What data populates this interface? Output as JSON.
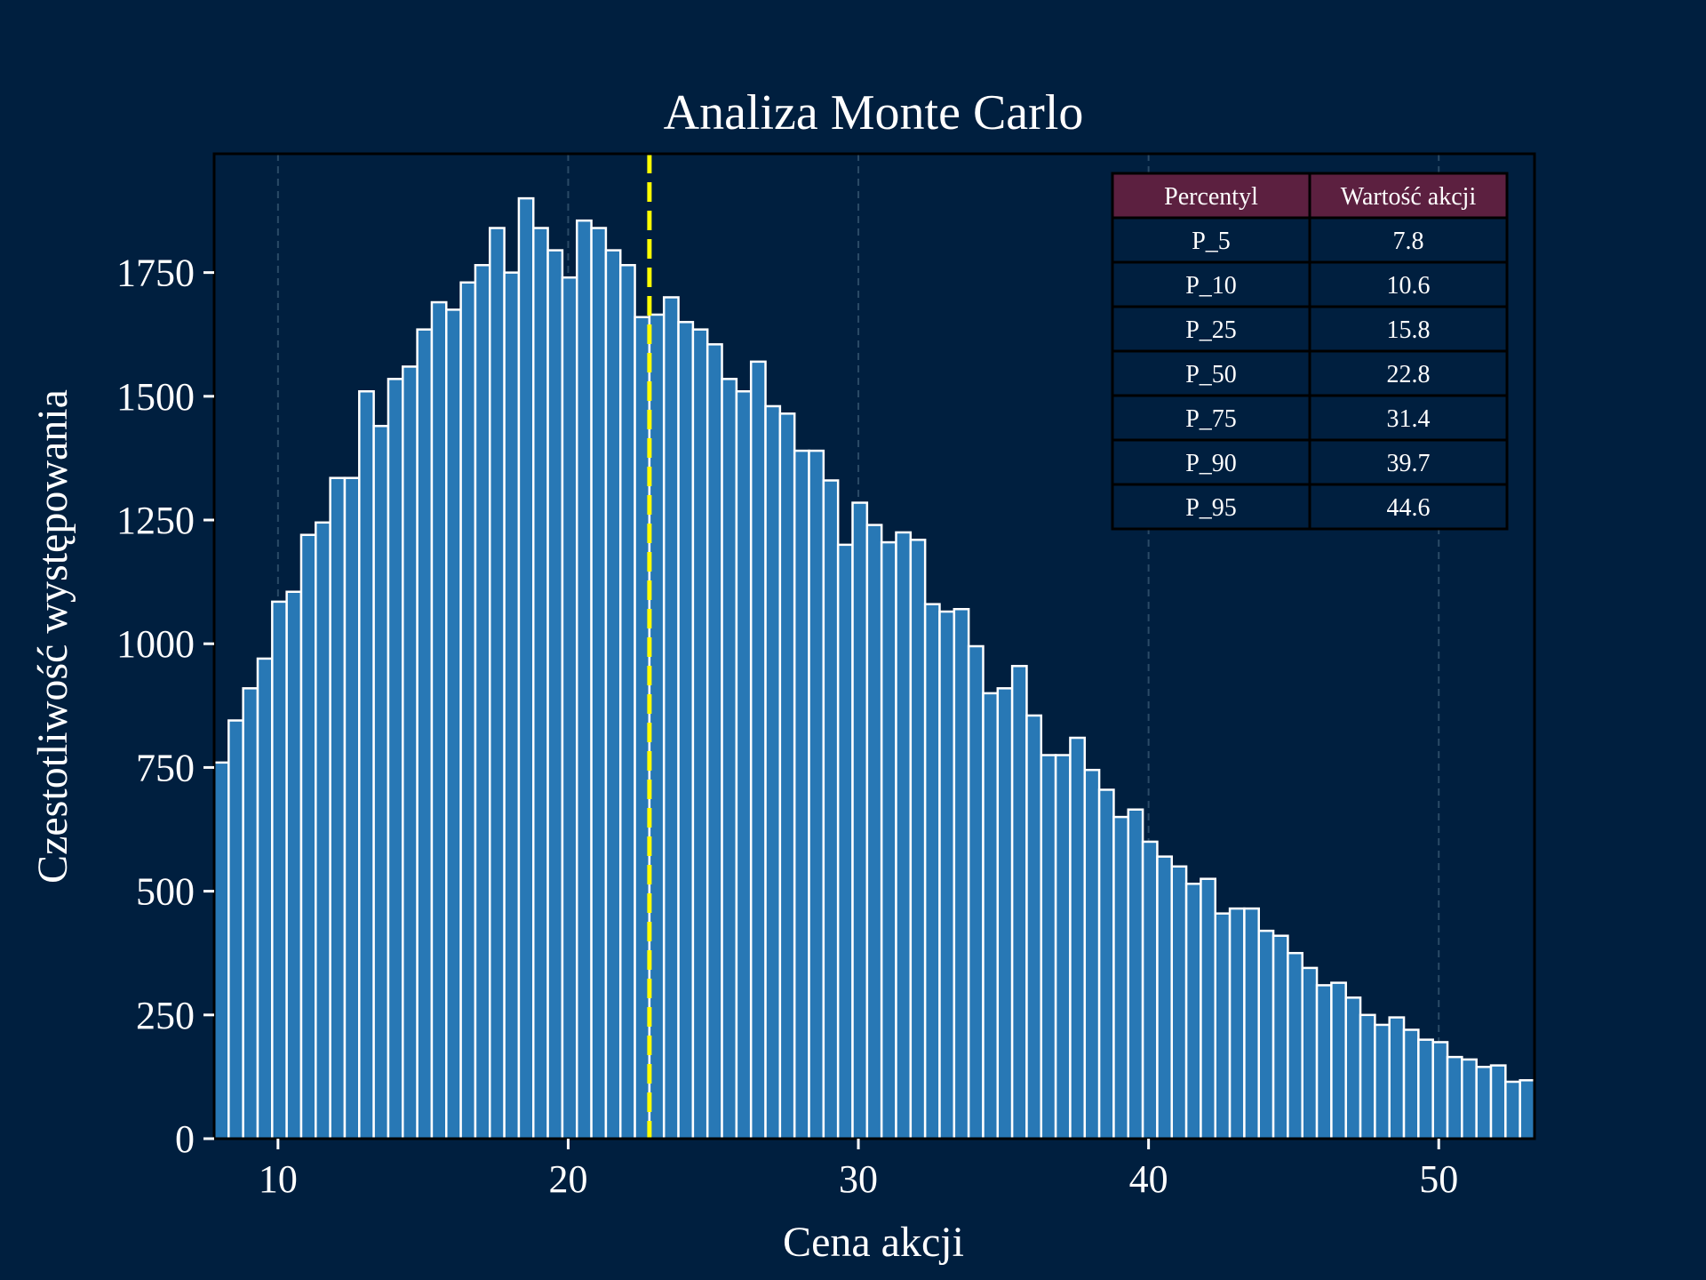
{
  "chart_data": {
    "type": "bar",
    "title": "Analiza Monte Carlo",
    "xlabel": "Cena akcji",
    "ylabel": "Czestotliwość występowania",
    "xlim": [
      7.8,
      53.3
    ],
    "ylim": [
      0,
      1990
    ],
    "x_ticks": [
      10,
      20,
      30,
      40,
      50
    ],
    "y_ticks": [
      0,
      250,
      500,
      750,
      1000,
      1250,
      1500,
      1750
    ],
    "grid": "x-only-dashed",
    "bar_color": "#2878b5",
    "bar_edge_color": "#ffffff",
    "background_color": "#001f3f",
    "marker_line": {
      "x": 22.8,
      "color": "#ffff00",
      "style": "dashed"
    },
    "bins": {
      "start": 7.8,
      "width": 0.5,
      "values": [
        760,
        845,
        910,
        970,
        1085,
        1105,
        1220,
        1245,
        1335,
        1335,
        1510,
        1440,
        1535,
        1560,
        1635,
        1690,
        1675,
        1730,
        1765,
        1840,
        1750,
        1900,
        1840,
        1795,
        1740,
        1855,
        1840,
        1795,
        1765,
        1660,
        1665,
        1700,
        1650,
        1635,
        1605,
        1535,
        1510,
        1570,
        1480,
        1465,
        1390,
        1390,
        1330,
        1200,
        1285,
        1240,
        1205,
        1225,
        1210,
        1080,
        1065,
        1070,
        995,
        900,
        910,
        955,
        855,
        775,
        775,
        810,
        745,
        705,
        650,
        665,
        600,
        570,
        550,
        515,
        525,
        455,
        465,
        465,
        420,
        410,
        375,
        345,
        310,
        315,
        285,
        250,
        230,
        245,
        220,
        200,
        195,
        165,
        160,
        145,
        148,
        115,
        118
      ]
    },
    "table": {
      "headers": [
        "Percentyl",
        "Wartość akcji"
      ],
      "rows": [
        [
          "P_5",
          "7.8"
        ],
        [
          "P_10",
          "10.6"
        ],
        [
          "P_25",
          "15.8"
        ],
        [
          "P_50",
          "22.8"
        ],
        [
          "P_75",
          "31.4"
        ],
        [
          "P_90",
          "39.7"
        ],
        [
          "P_95",
          "44.6"
        ]
      ],
      "header_color": "#5c2040"
    }
  }
}
